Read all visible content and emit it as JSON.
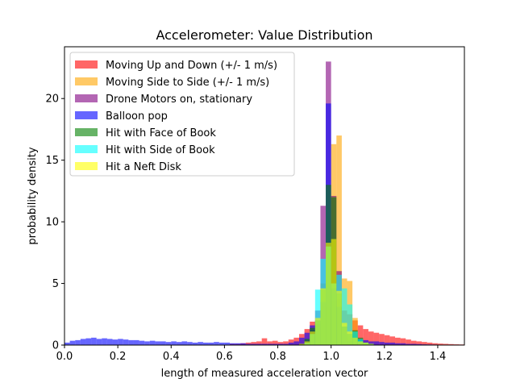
{
  "chart_data": {
    "type": "histogram",
    "title": "Accelerometer: Value Distribution",
    "xlabel": "length of measured acceleration vector",
    "ylabel": "probability density",
    "xlim": [
      0.0,
      1.5
    ],
    "ylim": [
      0,
      24.2
    ],
    "xticks": [
      "0.0",
      "0.2",
      "0.4",
      "0.6",
      "0.8",
      "1.0",
      "1.2",
      "1.4"
    ],
    "yticks": [
      "0",
      "5",
      "10",
      "15",
      "20"
    ],
    "grid": false,
    "legend_position": "top-left",
    "bin_width": 0.02,
    "bin_start": 0.0,
    "bar_opacity": 0.6,
    "series": [
      {
        "name": "Moving Up and Down (+/- 1 m/s)",
        "color": "#ff0000",
        "values": [
          0,
          0,
          0,
          0,
          0,
          0,
          0,
          0,
          0,
          0,
          0,
          0,
          0,
          0,
          0,
          0,
          0,
          0,
          0,
          0,
          0,
          0,
          0,
          0,
          0,
          0,
          0,
          0,
          0,
          0,
          0,
          0.1,
          0.1,
          0.15,
          0.2,
          0.25,
          0.3,
          0.55,
          0.3,
          0.35,
          0.25,
          0.3,
          0.45,
          0.6,
          0.9,
          1.3,
          1.9,
          1.7,
          2.2,
          3.1,
          3.6,
          3.7,
          2.8,
          2.5,
          2.0,
          1.6,
          1.3,
          1.1,
          1.0,
          0.9,
          0.8,
          0.7,
          0.6,
          0.55,
          0.45,
          0.35,
          0.3,
          0.25,
          0.2,
          0.15,
          0.12,
          0.1,
          0.08,
          0.06,
          0.05
        ]
      },
      {
        "name": "Moving Side to Side (+/- 1 m/s)",
        "color": "#ffa500",
        "values": [
          0,
          0,
          0,
          0,
          0,
          0,
          0,
          0,
          0,
          0,
          0,
          0,
          0,
          0,
          0,
          0,
          0,
          0,
          0,
          0,
          0,
          0,
          0,
          0,
          0,
          0,
          0,
          0,
          0,
          0,
          0,
          0,
          0,
          0,
          0,
          0,
          0,
          0,
          0,
          0,
          0,
          0,
          0,
          0,
          0,
          0.1,
          0.7,
          1.4,
          5.0,
          5.3,
          16.3,
          17.0,
          5.4,
          5.2,
          2.2,
          0.5,
          0.1,
          0,
          0,
          0,
          0,
          0,
          0,
          0,
          0,
          0,
          0,
          0,
          0,
          0,
          0,
          0,
          0,
          0,
          0
        ]
      },
      {
        "name": "Drone Motors on, stationary",
        "color": "#800080",
        "values": [
          0,
          0,
          0,
          0,
          0,
          0,
          0,
          0,
          0,
          0,
          0,
          0,
          0,
          0,
          0,
          0,
          0,
          0,
          0,
          0,
          0,
          0,
          0,
          0,
          0,
          0,
          0,
          0,
          0,
          0,
          0,
          0,
          0,
          0,
          0,
          0,
          0,
          0,
          0,
          0,
          0,
          0,
          0,
          0,
          0,
          0.3,
          1.2,
          2.8,
          11.3,
          23.0,
          12.1,
          6.0,
          1.5,
          0.3,
          0.1,
          0,
          0,
          0,
          0,
          0,
          0,
          0,
          0,
          0,
          0,
          0,
          0,
          0,
          0,
          0,
          0,
          0,
          0,
          0,
          0
        ]
      },
      {
        "name": "Balloon pop",
        "color": "#0000ff",
        "values": [
          0.2,
          0.35,
          0.4,
          0.5,
          0.55,
          0.6,
          0.5,
          0.55,
          0.5,
          0.45,
          0.5,
          0.45,
          0.4,
          0.4,
          0.35,
          0.3,
          0.35,
          0.3,
          0.3,
          0.25,
          0.3,
          0.25,
          0.3,
          0.25,
          0.2,
          0.25,
          0.2,
          0.2,
          0.25,
          0.2,
          0.2,
          0.15,
          0.15,
          0.15,
          0.1,
          0.1,
          0.1,
          0.1,
          0.1,
          0.1,
          0.1,
          0.1,
          0.2,
          0.3,
          0.6,
          1.0,
          1.6,
          2.0,
          3.5,
          19.6,
          4.6,
          3.1,
          1.5,
          0.9,
          0.6,
          0.5,
          0.4,
          0.3,
          0.3,
          0.25,
          0.2,
          0.2,
          0.15,
          0.15,
          0.1,
          0.1,
          0.08,
          0.06,
          0.05,
          0.04,
          0.03,
          0.02,
          0.02,
          0.01,
          0.01
        ]
      },
      {
        "name": "Hit with Face of Book",
        "color": "#008000",
        "values": [
          0,
          0,
          0,
          0,
          0,
          0,
          0,
          0,
          0,
          0,
          0,
          0,
          0,
          0,
          0,
          0,
          0,
          0,
          0,
          0,
          0,
          0,
          0,
          0,
          0,
          0,
          0,
          0,
          0,
          0,
          0,
          0,
          0,
          0,
          0,
          0,
          0,
          0,
          0,
          0,
          0,
          0,
          0,
          0,
          0.1,
          0.5,
          1.4,
          2.0,
          4.5,
          13.0,
          12.0,
          4.2,
          1.5,
          0.9,
          1.2,
          0.6,
          0.2,
          0.1,
          0,
          0,
          0,
          0,
          0,
          0,
          0,
          0,
          0,
          0,
          0,
          0,
          0,
          0,
          0,
          0,
          0
        ]
      },
      {
        "name": "Hit with Side of Book",
        "color": "#00ffff",
        "values": [
          0,
          0,
          0,
          0,
          0,
          0,
          0,
          0,
          0,
          0,
          0,
          0,
          0,
          0,
          0,
          0,
          0,
          0,
          0,
          0,
          0,
          0,
          0,
          0,
          0,
          0,
          0,
          0,
          0,
          0,
          0,
          0,
          0,
          0,
          0,
          0,
          0,
          0,
          0,
          0,
          0,
          0,
          0,
          0,
          0,
          0.2,
          0.9,
          4.5,
          7.0,
          8.0,
          5.0,
          5.7,
          4.6,
          3.3,
          1.1,
          0.5,
          0.2,
          0.1,
          0,
          0,
          0,
          0,
          0,
          0,
          0,
          0,
          0,
          0,
          0,
          0,
          0,
          0,
          0,
          0,
          0
        ]
      },
      {
        "name": "Hit a Neft Disk",
        "color": "#ffff00",
        "values": [
          0,
          0,
          0,
          0,
          0,
          0,
          0,
          0,
          0,
          0,
          0,
          0,
          0,
          0,
          0,
          0,
          0,
          0,
          0,
          0,
          0,
          0,
          0,
          0,
          0,
          0,
          0,
          0,
          0,
          0,
          0,
          0,
          0,
          0,
          0,
          0,
          0,
          0,
          0,
          0,
          0,
          0,
          0,
          0,
          0.1,
          0.3,
          1.1,
          2.2,
          4.6,
          8.3,
          8.6,
          4.4,
          1.8,
          1.1,
          0.6,
          0.3,
          0.2,
          0.1,
          0,
          0,
          0,
          0,
          0,
          0,
          0,
          0,
          0,
          0,
          0,
          0,
          0,
          0,
          0,
          0,
          0
        ]
      }
    ]
  }
}
